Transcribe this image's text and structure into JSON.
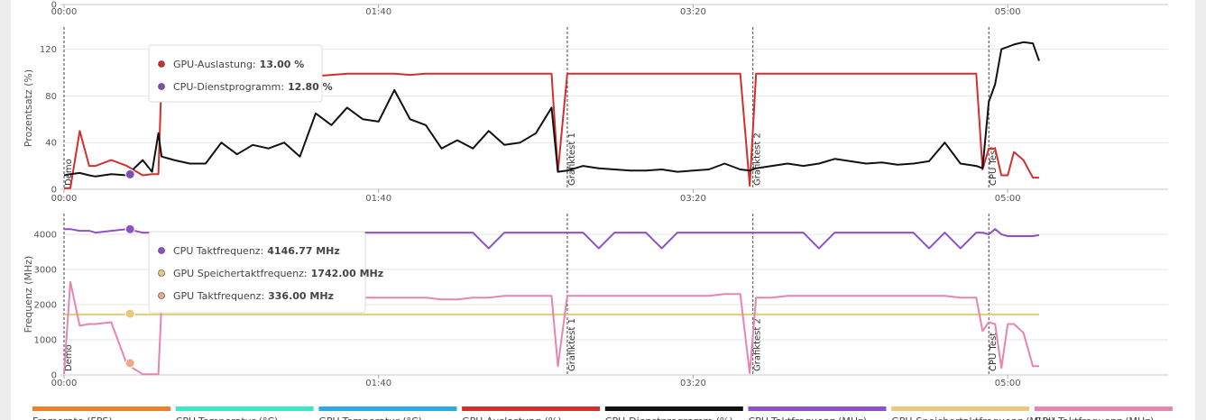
{
  "chart_data": [
    {
      "type": "line",
      "xlim": [
        0,
        351
      ],
      "yticks": [
        0
      ],
      "xticks": [
        {
          "value": 0,
          "label": "00:00"
        },
        {
          "value": 100,
          "label": "01:40"
        },
        {
          "value": 200,
          "label": "03:20"
        },
        {
          "value": 300,
          "label": "05:00"
        }
      ]
    },
    {
      "type": "line",
      "ylabel": "Prozentsatz (%)",
      "xlim": [
        0,
        351
      ],
      "ylim": [
        0,
        139
      ],
      "yticks": [
        0,
        40,
        80,
        120
      ],
      "grid": true,
      "xticks": [
        {
          "value": 0,
          "label": "00:00"
        },
        {
          "value": 100,
          "label": "01:40"
        },
        {
          "value": 200,
          "label": "03:20"
        },
        {
          "value": 300,
          "label": "05:00"
        }
      ],
      "markers": [
        {
          "x": 0,
          "label": "Demo"
        },
        {
          "x": 160,
          "label": "Grafiktest 1"
        },
        {
          "x": 219,
          "label": "Grafiktest 2"
        },
        {
          "x": 294,
          "label": "CPU Test"
        }
      ],
      "x": [
        0,
        2,
        5,
        8,
        10,
        15,
        20,
        25,
        28,
        30,
        31,
        35,
        40,
        45,
        50,
        55,
        60,
        65,
        70,
        75,
        80,
        85,
        90,
        95,
        100,
        105,
        110,
        115,
        120,
        125,
        130,
        135,
        140,
        145,
        150,
        155,
        157,
        160,
        165,
        170,
        175,
        180,
        185,
        190,
        195,
        200,
        205,
        210,
        215,
        218,
        220,
        225,
        230,
        235,
        240,
        245,
        250,
        255,
        260,
        265,
        270,
        275,
        280,
        285,
        290,
        292,
        294,
        296,
        298,
        300,
        302,
        305,
        308,
        310
      ],
      "series": [
        {
          "color": "#d32f2f",
          "values": [
            1,
            1,
            50,
            20,
            20,
            25,
            20,
            12,
            13,
            13,
            95,
            95,
            95,
            95,
            96,
            96,
            96,
            97,
            97,
            97,
            97,
            98,
            99,
            99,
            99,
            99,
            98,
            99,
            99,
            99,
            99,
            99,
            99,
            99,
            99,
            99,
            15,
            99,
            99,
            99,
            99,
            99,
            99,
            99,
            99,
            99,
            99,
            99,
            99,
            3,
            99,
            99,
            99,
            99,
            99,
            99,
            99,
            99,
            99,
            99,
            99,
            99,
            99,
            99,
            99,
            17,
            35,
            35,
            12,
            12,
            32,
            25,
            10,
            10
          ]
        },
        {
          "color": "#111111",
          "values": [
            12,
            13,
            14,
            12,
            11,
            13,
            12,
            25,
            15,
            48,
            28,
            25,
            22,
            22,
            40,
            30,
            38,
            35,
            40,
            28,
            65,
            55,
            70,
            60,
            58,
            85,
            60,
            55,
            35,
            42,
            35,
            50,
            38,
            40,
            48,
            70,
            15,
            16,
            20,
            18,
            17,
            16,
            16,
            17,
            15,
            16,
            17,
            22,
            17,
            16,
            18,
            20,
            22,
            20,
            22,
            26,
            24,
            22,
            23,
            21,
            22,
            24,
            40,
            22,
            20,
            18,
            75,
            90,
            120,
            122,
            124,
            126,
            125,
            110
          ]
        }
      ],
      "tooltip": {
        "x": 21,
        "items": [
          {
            "name": "GPU-Auslastung:",
            "value": 13,
            "value_label": "13.00 %",
            "color": "#d32f2f"
          },
          {
            "name": "CPU-Dienstprogramm:",
            "value": 12.8,
            "value_label": "12.80 %",
            "color": "#7b4fb5"
          }
        ]
      }
    },
    {
      "type": "line",
      "ylabel": "Frequenz (MHz)",
      "xlim": [
        0,
        351
      ],
      "ylim": [
        0,
        4590
      ],
      "yticks": [
        0,
        1000,
        2000,
        3000,
        4000
      ],
      "grid": true,
      "xticks": [
        {
          "value": 0,
          "label": "00:00"
        },
        {
          "value": 100,
          "label": "01:40"
        },
        {
          "value": 200,
          "label": "03:20"
        },
        {
          "value": 300,
          "label": "05:00"
        }
      ],
      "markers": [
        {
          "x": 0,
          "label": "Demo"
        },
        {
          "x": 160,
          "label": "Grafiktest 1"
        },
        {
          "x": 219,
          "label": "Grafiktest 2"
        },
        {
          "x": 294,
          "label": "CPU Test"
        }
      ],
      "x": [
        0,
        2,
        5,
        8,
        10,
        15,
        20,
        25,
        28,
        30,
        31,
        35,
        40,
        45,
        50,
        55,
        60,
        65,
        70,
        75,
        80,
        85,
        90,
        95,
        100,
        105,
        110,
        115,
        120,
        125,
        130,
        135,
        140,
        145,
        150,
        155,
        157,
        160,
        165,
        170,
        175,
        180,
        185,
        190,
        195,
        200,
        205,
        210,
        215,
        218,
        220,
        225,
        230,
        235,
        240,
        245,
        250,
        255,
        260,
        265,
        270,
        275,
        280,
        285,
        290,
        292,
        294,
        296,
        298,
        300,
        302,
        305,
        308,
        310
      ],
      "series": [
        {
          "color": "#e8c87a",
          "values": [
            1720,
            1720,
            1720,
            1720,
            1720,
            1720,
            1720,
            1720,
            1720,
            1720,
            1720,
            1720,
            1720,
            1720,
            1720,
            1720,
            1720,
            1720,
            1720,
            1720,
            1720,
            1720,
            1720,
            1720,
            1720,
            1720,
            1720,
            1720,
            1720,
            1720,
            1720,
            1720,
            1720,
            1720,
            1720,
            1720,
            1720,
            1720,
            1720,
            1720,
            1720,
            1720,
            1720,
            1720,
            1720,
            1720,
            1720,
            1720,
            1720,
            1720,
            1720,
            1720,
            1720,
            1720,
            1720,
            1720,
            1720,
            1720,
            1720,
            1720,
            1720,
            1720,
            1720,
            1720,
            1720,
            1720,
            1720,
            1720,
            1720,
            1720,
            1720,
            1720,
            1720,
            1720
          ]
        },
        {
          "color": "#e884b0",
          "values": [
            50,
            2650,
            1400,
            1450,
            1450,
            1500,
            300,
            20,
            20,
            20,
            2000,
            2050,
            2100,
            2100,
            2100,
            2150,
            2150,
            2150,
            2150,
            2150,
            2150,
            2200,
            2200,
            2200,
            2200,
            2200,
            2200,
            2200,
            2150,
            2150,
            2200,
            2200,
            2250,
            2250,
            2250,
            2250,
            250,
            2250,
            2250,
            2250,
            2250,
            2250,
            2250,
            2250,
            2250,
            2250,
            2250,
            2300,
            2300,
            50,
            2200,
            2200,
            2250,
            2250,
            2250,
            2250,
            2250,
            2250,
            2250,
            2250,
            2250,
            2250,
            2250,
            2200,
            2200,
            1250,
            1500,
            1450,
            200,
            1450,
            1450,
            1200,
            250,
            250
          ]
        },
        {
          "color": "#8e50c8",
          "values": [
            4150,
            4150,
            4100,
            4100,
            4050,
            4100,
            4150,
            4050,
            4050,
            4050,
            4050,
            4050,
            4050,
            4050,
            4050,
            4050,
            4050,
            4050,
            4050,
            4050,
            4050,
            4050,
            4050,
            4050,
            4050,
            4050,
            4050,
            4050,
            4050,
            4050,
            4050,
            3600,
            4050,
            4050,
            4050,
            4050,
            4050,
            4050,
            4050,
            3600,
            4050,
            4050,
            4050,
            3600,
            4050,
            4050,
            4050,
            4050,
            4050,
            4050,
            4050,
            4050,
            4050,
            4050,
            3600,
            4050,
            4050,
            4050,
            4050,
            4050,
            4050,
            3600,
            4050,
            3600,
            4050,
            4050,
            4000,
            4150,
            4000,
            3950,
            3950,
            3950,
            3950,
            3980
          ]
        }
      ],
      "tooltip": {
        "x": 21,
        "items": [
          {
            "name": "CPU Taktfrequenz:",
            "value": 4146.77,
            "value_label": "4146.77 MHz",
            "color": "#8e50c8"
          },
          {
            "name": "GPU Speichertaktfrequenz:",
            "value": 1742,
            "value_label": "1742.00 MHz",
            "color": "#e8c87a"
          },
          {
            "name": "GPU Taktfrequenz:",
            "value": 336,
            "value_label": "336.00 MHz",
            "color": "#f0a882"
          }
        ]
      }
    }
  ],
  "legend": [
    {
      "name": "Framerate (FPS)",
      "color": "#f07f2a"
    },
    {
      "name": "CPU-Temperatur (°C)",
      "color": "#3ee8c0"
    },
    {
      "name": "GPU-Temperatur (°C)",
      "color": "#2aaae8"
    },
    {
      "name": "GPU-Auslastung (%)",
      "color": "#d32f2f"
    },
    {
      "name": "CPU-Dienstprogramm (%)",
      "color": "#111111"
    },
    {
      "name": "CPU-Taktfrequenz (MHz)",
      "color": "#8e50c8"
    },
    {
      "name": "GPU-Speichertaktfrequenz (MHz)",
      "color": "#e8c87a"
    },
    {
      "name": "GPU-Taktfrequenz (MHz)",
      "color": "#e884b0"
    }
  ]
}
